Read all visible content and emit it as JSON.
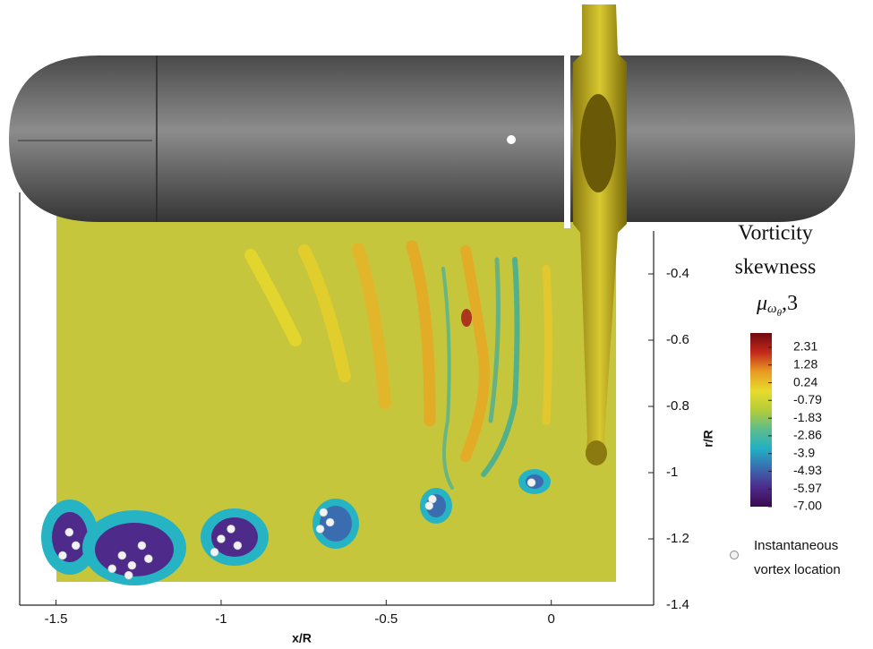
{
  "chart_data": {
    "type": "scatter",
    "xlabel": "x/R",
    "ylabel": "r/R",
    "xlim": [
      -1.61,
      0.31
    ],
    "ylim": [
      -1.4,
      -0.2
    ],
    "xticks": [
      -1.5,
      -1,
      -0.5,
      0
    ],
    "yticks": [
      -0.4,
      -0.6,
      -0.8,
      -1,
      -1.2,
      -1.4
    ],
    "series": [
      {
        "name": "Instantaneous vortex location",
        "name_lines": [
          "Instantaneous",
          "vortex location"
        ],
        "color": "#f2f2f2",
        "x": [
          -1.46,
          -1.44,
          -1.48,
          -1.3,
          -1.27,
          -1.24,
          -1.22,
          -1.28,
          -1.33,
          -1.0,
          -0.97,
          -0.95,
          -1.02,
          -0.69,
          -0.67,
          -0.7,
          -0.36,
          -0.37,
          -0.06
        ],
        "values": [
          -1.18,
          -1.22,
          -1.25,
          -1.25,
          -1.28,
          -1.22,
          -1.26,
          -1.31,
          -1.29,
          -1.2,
          -1.17,
          -1.22,
          -1.24,
          -1.12,
          -1.15,
          -1.17,
          -1.08,
          -1.1,
          -1.03
        ]
      }
    ],
    "colorbar": {
      "title_lines": [
        "Vorticity",
        "skewness"
      ],
      "symbol": {
        "base": "μ",
        "sub": "ω",
        "subsub": "θ",
        "suffix": ",3"
      },
      "clim": [
        -7,
        2.31
      ],
      "ticks": [
        2.31,
        1.28,
        0.24,
        -0.79,
        -1.83,
        -2.86,
        -3.9,
        -4.93,
        -5.97,
        {
          "value": -7,
          "label": "-7.00"
        }
      ],
      "colormap": [
        "#6e0a0e",
        "#c4281c",
        "#e89a22",
        "#e6dc2c",
        "#b4cc3a",
        "#5cbc8c",
        "#22b0c4",
        "#3a6cb0",
        "#4e2a8a",
        "#3a0a4e"
      ]
    }
  }
}
